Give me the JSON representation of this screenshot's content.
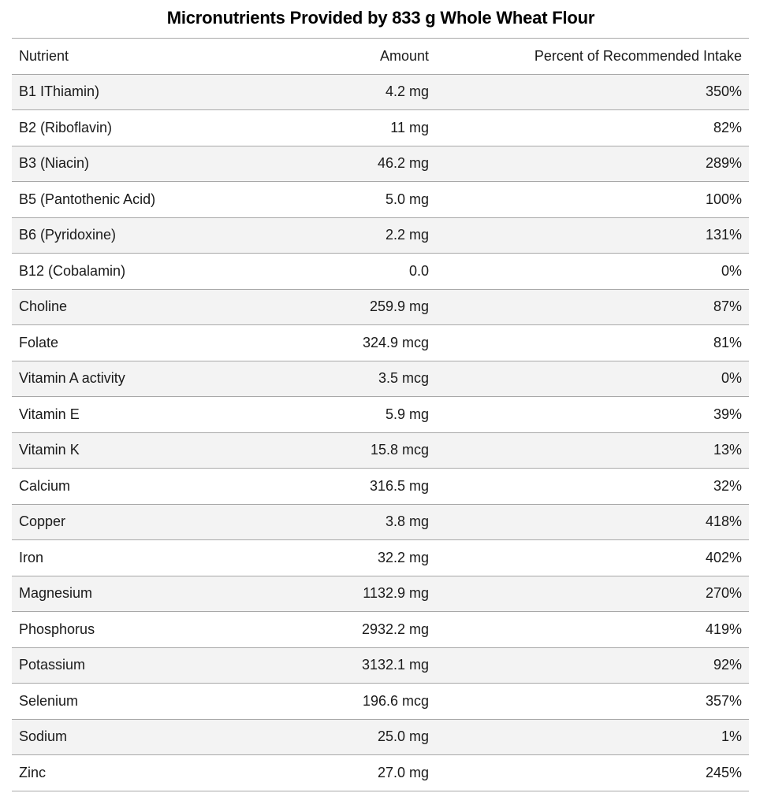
{
  "title": "Micronutrients Provided by 833 g Whole Wheat Flour",
  "table": {
    "headers": {
      "nutrient": "Nutrient",
      "amount": "Amount",
      "percent": "Percent of Recommended Intake"
    },
    "rows": [
      {
        "nutrient": "B1 IThiamin)",
        "amount": "4.2 mg",
        "percent": "350%"
      },
      {
        "nutrient": "B2 (Riboflavin)",
        "amount": "11 mg",
        "percent": "82%"
      },
      {
        "nutrient": "B3 (Niacin)",
        "amount": "46.2 mg",
        "percent": "289%"
      },
      {
        "nutrient": "B5 (Pantothenic Acid)",
        "amount": "5.0 mg",
        "percent": "100%"
      },
      {
        "nutrient": "B6 (Pyridoxine)",
        "amount": "2.2 mg",
        "percent": "131%"
      },
      {
        "nutrient": "B12 (Cobalamin)",
        "amount": "0.0",
        "percent": "0%"
      },
      {
        "nutrient": "Choline",
        "amount": "259.9 mg",
        "percent": "87%"
      },
      {
        "nutrient": "Folate",
        "amount": "324.9 mcg",
        "percent": "81%"
      },
      {
        "nutrient": "Vitamin A activity",
        "amount": "3.5 mcg",
        "percent": "0%"
      },
      {
        "nutrient": "Vitamin E",
        "amount": "5.9 mg",
        "percent": "39%"
      },
      {
        "nutrient": "Vitamin K",
        "amount": "15.8 mcg",
        "percent": "13%"
      },
      {
        "nutrient": "Calcium",
        "amount": "316.5 mg",
        "percent": "32%"
      },
      {
        "nutrient": "Copper",
        "amount": "3.8 mg",
        "percent": "418%"
      },
      {
        "nutrient": "Iron",
        "amount": "32.2 mg",
        "percent": "402%"
      },
      {
        "nutrient": "Magnesium",
        "amount": "1132.9 mg",
        "percent": "270%"
      },
      {
        "nutrient": "Phosphorus",
        "amount": "2932.2 mg",
        "percent": "419%"
      },
      {
        "nutrient": "Potassium",
        "amount": "3132.1 mg",
        "percent": "92%"
      },
      {
        "nutrient": "Selenium",
        "amount": "196.6 mcg",
        "percent": "357%"
      },
      {
        "nutrient": "Sodium",
        "amount": "25.0 mg",
        "percent": "1%"
      },
      {
        "nutrient": "Zinc",
        "amount": "27.0 mg",
        "percent": "245%"
      }
    ]
  },
  "colors": {
    "stripe": "#f3f3f3",
    "border": "#a8a8a8",
    "text": "#1a1a1a"
  }
}
